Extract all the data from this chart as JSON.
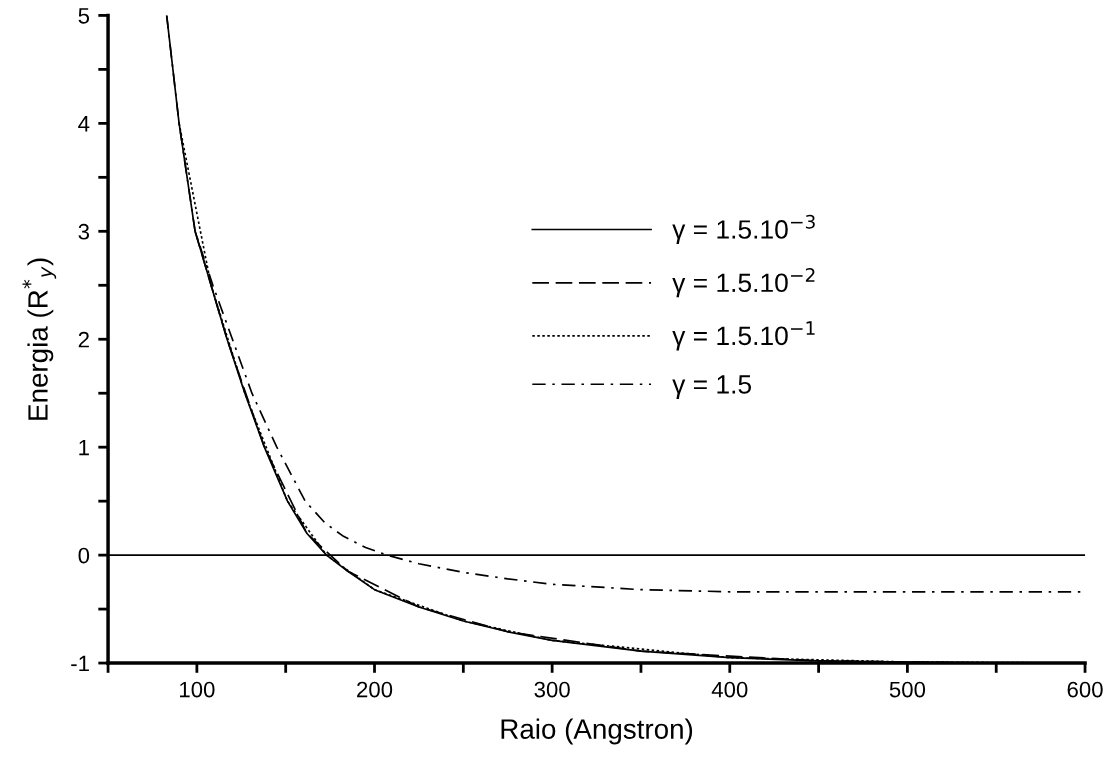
{
  "chart_data": {
    "type": "line",
    "xlabel": "Raio (Angstron)",
    "ylabel": "Energia (R$^{*}$$_{y}$)",
    "xlim": [
      50,
      600
    ],
    "ylim": [
      -1,
      5
    ],
    "xticks": [
      {
        "value": 50,
        "label": null
      },
      100,
      {
        "value": 150,
        "label": null
      },
      200,
      {
        "value": 250,
        "label": null
      },
      300,
      {
        "value": 350,
        "label": null
      },
      400,
      {
        "value": 450,
        "label": null
      },
      500,
      {
        "value": 550,
        "label": null
      },
      600
    ],
    "yticks": [
      -1,
      {
        "value": -0.5,
        "label": null
      },
      0,
      {
        "value": 0.5,
        "label": null
      },
      1,
      {
        "value": 1.5,
        "label": null
      },
      2,
      {
        "value": 2.5,
        "label": null
      },
      3,
      {
        "value": 3.5,
        "label": null
      },
      4,
      {
        "value": 4.5,
        "label": null
      },
      5
    ],
    "grid": false,
    "legend": "center right",
    "marker": "none",
    "ref_lines": [
      {
        "axis": "y",
        "value": 0,
        "label": null,
        "color": "#000000",
        "line_style": "solid"
      }
    ],
    "series": [
      {
        "name": "γ = 1.5.10$^{−3}$",
        "color": "#000000",
        "line_style": "solid",
        "x": [
          83,
          90,
          99,
          108,
          117,
          127,
          138,
          151,
          162,
          173,
          185,
          200,
          225,
          250,
          275,
          300,
          350,
          400,
          450,
          500,
          550,
          600
        ],
        "values": [
          5,
          4,
          3,
          2.5,
          2,
          1.5,
          1,
          0.5,
          0.2,
          0,
          -0.15,
          -0.32,
          -0.48,
          -0.61,
          -0.71,
          -0.79,
          -0.89,
          -0.95,
          -0.98,
          -0.99,
          -1,
          -1
        ]
      },
      {
        "name": "γ = 1.5.10$^{−2}$",
        "color": "#000000",
        "line_style": "dashed",
        "x": [
          99,
          117,
          138,
          162,
          185,
          225,
          275,
          350,
          450,
          550,
          600
        ],
        "values": [
          3,
          2,
          1,
          0.2,
          -0.15,
          -0.48,
          -0.71,
          -0.89,
          -0.98,
          -1,
          -1
        ]
      },
      {
        "name": "γ = 1.5.10$^{−1}$",
        "color": "#000000",
        "line_style": "dotted",
        "x": [
          90,
          108,
          127,
          151,
          173,
          200,
          250,
          300,
          400,
          500,
          600
        ],
        "values": [
          4,
          2.5,
          1.5,
          0.5,
          0,
          -0.32,
          -0.61,
          -0.79,
          -0.95,
          -0.99,
          -1
        ]
      },
      {
        "name": "γ = 1.5",
        "color": "#000000",
        "line_style": "dashdot",
        "x": [
          83,
          90,
          99,
          109,
          120,
          131,
          145,
          161,
          172,
          182,
          195,
          207,
          225,
          250,
          275,
          300,
          350,
          400,
          450,
          500,
          550,
          600
        ],
        "values": [
          5,
          4,
          3,
          2.5,
          2,
          1.5,
          1,
          0.5,
          0.3,
          0.18,
          0.07,
          0,
          -0.08,
          -0.16,
          -0.22,
          -0.27,
          -0.32,
          -0.34,
          -0.34,
          -0.34,
          -0.34,
          -0.34
        ]
      }
    ]
  }
}
